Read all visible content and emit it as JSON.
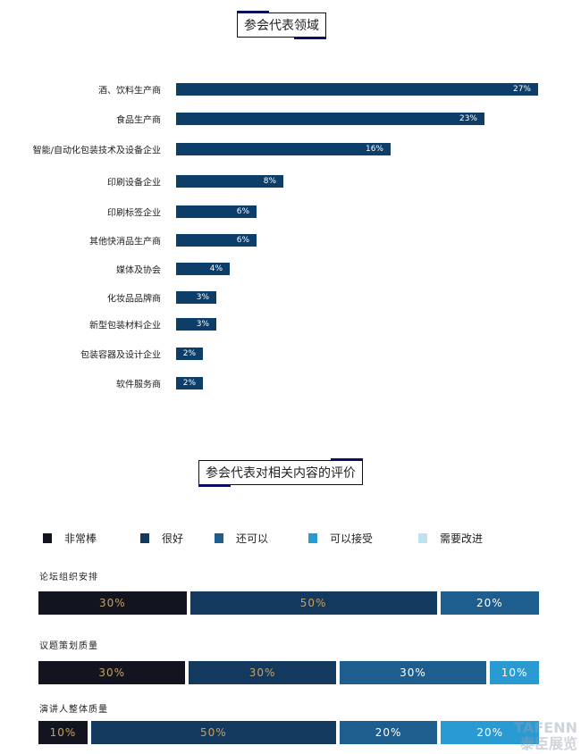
{
  "chart_data": [
    {
      "type": "bar",
      "orientation": "horizontal",
      "title": "参会代表领域",
      "categories": [
        "酒、饮料生产商",
        "食品生产商",
        "智能/自动化包装技术及设备企业",
        "印刷设备企业",
        "印刷标签企业",
        "其他快消品生产商",
        "媒体及协会",
        "化妆品品牌商",
        "新型包装材料企业",
        "包装容器及设计企业",
        "软件服务商"
      ],
      "values": [
        27,
        23,
        16,
        8,
        6,
        6,
        4,
        3,
        3,
        2,
        2
      ],
      "value_labels": [
        "27%",
        "23%",
        "16%",
        "8%",
        "6%",
        "6%",
        "4%",
        "3%",
        "3%",
        "2%",
        "2%"
      ],
      "unit": "%",
      "color": "#0d3d69",
      "grid": false
    },
    {
      "type": "bar",
      "stacked": true,
      "orientation": "horizontal",
      "title": "参会代表对相关内容的评价",
      "legend_position": "top",
      "series": [
        {
          "name": "非常棒",
          "color": "#12151f",
          "label_color": "#c9a063"
        },
        {
          "name": "很好",
          "color": "#133a5e",
          "label_color": "#c9a063"
        },
        {
          "name": "还可以",
          "color": "#1e5e8e",
          "label_color": "#ffffff"
        },
        {
          "name": "可以接受",
          "color": "#2a9ad3",
          "label_color": "#ffffff"
        },
        {
          "name": "需要改进",
          "color": "#bfe3ee",
          "label_color": "#ffffff"
        }
      ],
      "rows": [
        {
          "label": "论坛组织安排",
          "values": [
            30,
            50,
            20,
            0,
            0
          ]
        },
        {
          "label": "议题策划质量",
          "values": [
            30,
            30,
            30,
            10,
            0
          ]
        },
        {
          "label": "演讲人整体质量",
          "values": [
            10,
            50,
            20,
            20,
            0
          ]
        }
      ]
    }
  ],
  "watermark": {
    "line1": "TAFENN",
    "line2": "泰臣展览"
  }
}
